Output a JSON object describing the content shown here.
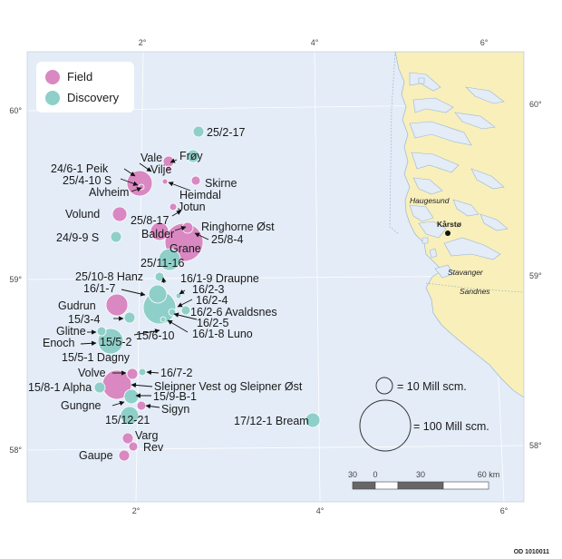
{
  "legend": {
    "items": [
      {
        "label": "Field",
        "color": "#d988c2"
      },
      {
        "label": "Discovery",
        "color": "#8fcfc9"
      }
    ]
  },
  "size_legend": {
    "small": "= 10 Mill scm.",
    "large": "= 100 Mill scm."
  },
  "scale_bar": {
    "labels": [
      "30",
      "0",
      "30",
      "60 km"
    ]
  },
  "graticule": {
    "lon_labels": [
      "2°",
      "4°",
      "6°"
    ],
    "lat_labels": [
      "60°",
      "59°",
      "58°"
    ]
  },
  "places": [
    {
      "name": "Haugesund"
    },
    {
      "name": "Kårstø"
    },
    {
      "name": "Stavanger"
    },
    {
      "name": "Sandnes"
    }
  ],
  "credit": "OD 1010011",
  "colors": {
    "sea": "#e3ecf7",
    "land": "#f8efbb",
    "field": "#d988c2",
    "discovery": "#8fcfc9"
  },
  "chart_data": {
    "type": "bubble-map",
    "size_unit": "Mill scm.",
    "fields": [
      "Vale",
      "Vilje",
      "24/6-1 Peik",
      "25/4-10 S",
      "Alvheim",
      "Skirne",
      "Heimdal",
      "Jotun",
      "Volund",
      "25/8-17",
      "Ringhorne Øst",
      "Balder",
      "25/8-4",
      "Grane",
      "Gudrun",
      "16/2-6 Avaldsnes",
      "Volve",
      "Sleipner Vest og Sleipner Øst",
      "15/8-1 Alpha",
      "Sigyn",
      "Varg",
      "Rev",
      "Gaupe"
    ],
    "discoveries": [
      "25/2-17",
      "Frøy",
      "24/9-9 S",
      "25/11-16",
      "25/10-8 Hanz",
      "16/1-9 Draupne",
      "16/1-7",
      "16/2-3",
      "16/2-4",
      "15/3-4",
      "16/2-5",
      "Glitne",
      "15/6-10",
      "16/1-8 Luno",
      "Enoch",
      "15/5-2",
      "15/5-1 Dagny",
      "16/7-2",
      "15/9-B-1",
      "Gungne",
      "15/12-21",
      "17/12-1 Bream"
    ]
  },
  "labels": [
    "25/2-17",
    "Frøy",
    "Vale",
    "Vilje",
    "24/6-1 Peik",
    "25/4-10 S",
    "Alvheim",
    "Skirne",
    "Heimdal",
    "Jotun",
    "Volund",
    "25/8-17",
    "Ringhorne Øst",
    "Balder",
    "25/8-4",
    "24/9-9 S",
    "Grane",
    "25/11-16",
    "25/10-8 Hanz",
    "16/1-9 Draupne",
    "16/1-7",
    "16/2-3",
    "16/2-4",
    "Gudrun",
    "16/2-6 Avaldsnes",
    "15/3-4",
    "16/2-5",
    "Glitne",
    "15/6-10",
    "16/1-8 Luno",
    "Enoch",
    "15/5-2",
    "15/5-1 Dagny",
    "Volve",
    "16/7-2",
    "15/8-1 Alpha",
    "Sleipner Vest og Sleipner Øst",
    "15/9-B-1",
    "Gungne",
    "Sigyn",
    "15/12-21",
    "17/12-1 Bream",
    "Varg",
    "Rev",
    "Gaupe"
  ]
}
